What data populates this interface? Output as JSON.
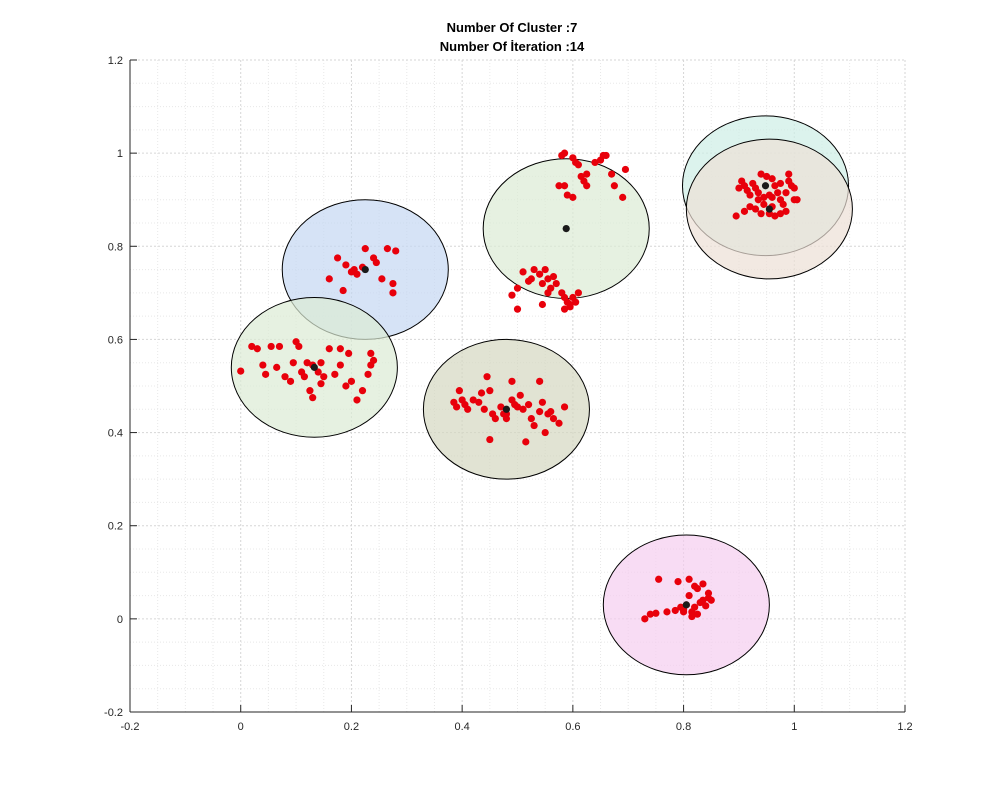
{
  "chart_data": {
    "type": "scatter",
    "title": "Number Of Cluster :7",
    "subtitle": "Number Of İteration :14",
    "xlabel": "",
    "ylabel": "",
    "xlim": [
      -0.2,
      1.2
    ],
    "ylim": [
      -0.2,
      1.2
    ],
    "x_ticks": [
      -0.2,
      0,
      0.2,
      0.4,
      0.6,
      0.8,
      1,
      1.2
    ],
    "y_ticks": [
      -0.2,
      0,
      0.2,
      0.4,
      0.6,
      0.8,
      1,
      1.2
    ],
    "x_tick_labels": [
      "-0.2",
      "0",
      "0.2",
      "0.4",
      "0.6",
      "0.8",
      "1",
      "1.2"
    ],
    "y_tick_labels": [
      "-0.2",
      "0",
      "0.2",
      "0.4",
      "0.6",
      "0.8",
      "1",
      "1.2"
    ],
    "grid": "major and minor, dotted",
    "legend": "none",
    "colors": {
      "point": "#e8000b",
      "centroid": "#1a1a1a",
      "circle_edge": "#000000"
    },
    "clusters": [
      {
        "center": [
          0.225,
          0.75
        ],
        "radius": 0.15,
        "fill": "#c4d7f2",
        "points": [
          [
            0.175,
            0.775
          ],
          [
            0.19,
            0.76
          ],
          [
            0.2,
            0.745
          ],
          [
            0.21,
            0.74
          ],
          [
            0.22,
            0.755
          ],
          [
            0.225,
            0.795
          ],
          [
            0.24,
            0.775
          ],
          [
            0.245,
            0.765
          ],
          [
            0.265,
            0.795
          ],
          [
            0.28,
            0.79
          ],
          [
            0.255,
            0.73
          ],
          [
            0.275,
            0.72
          ],
          [
            0.16,
            0.73
          ],
          [
            0.185,
            0.705
          ],
          [
            0.275,
            0.7
          ],
          [
            0.205,
            0.75
          ]
        ]
      },
      {
        "center": [
          0.133,
          0.54
        ],
        "radius": 0.15,
        "fill": "#dcebd4",
        "points": [
          [
            0.0,
            0.532
          ],
          [
            0.02,
            0.585
          ],
          [
            0.03,
            0.58
          ],
          [
            0.04,
            0.545
          ],
          [
            0.045,
            0.525
          ],
          [
            0.055,
            0.585
          ],
          [
            0.07,
            0.585
          ],
          [
            0.065,
            0.54
          ],
          [
            0.08,
            0.52
          ],
          [
            0.095,
            0.55
          ],
          [
            0.1,
            0.595
          ],
          [
            0.105,
            0.585
          ],
          [
            0.11,
            0.53
          ],
          [
            0.12,
            0.55
          ],
          [
            0.13,
            0.545
          ],
          [
            0.115,
            0.52
          ],
          [
            0.14,
            0.53
          ],
          [
            0.145,
            0.55
          ],
          [
            0.15,
            0.52
          ],
          [
            0.125,
            0.49
          ],
          [
            0.13,
            0.475
          ],
          [
            0.16,
            0.58
          ],
          [
            0.18,
            0.58
          ],
          [
            0.17,
            0.525
          ],
          [
            0.18,
            0.545
          ],
          [
            0.195,
            0.57
          ],
          [
            0.2,
            0.51
          ],
          [
            0.19,
            0.5
          ],
          [
            0.21,
            0.47
          ],
          [
            0.22,
            0.49
          ],
          [
            0.235,
            0.57
          ],
          [
            0.24,
            0.555
          ],
          [
            0.235,
            0.545
          ],
          [
            0.23,
            0.525
          ],
          [
            0.145,
            0.505
          ],
          [
            0.09,
            0.51
          ]
        ]
      },
      {
        "center": [
          0.48,
          0.45
        ],
        "radius": 0.15,
        "fill": "#d4d7c0",
        "points": [
          [
            0.385,
            0.465
          ],
          [
            0.39,
            0.455
          ],
          [
            0.395,
            0.49
          ],
          [
            0.4,
            0.47
          ],
          [
            0.405,
            0.46
          ],
          [
            0.41,
            0.45
          ],
          [
            0.42,
            0.47
          ],
          [
            0.43,
            0.465
          ],
          [
            0.435,
            0.485
          ],
          [
            0.44,
            0.45
          ],
          [
            0.445,
            0.52
          ],
          [
            0.45,
            0.49
          ],
          [
            0.455,
            0.44
          ],
          [
            0.46,
            0.43
          ],
          [
            0.47,
            0.455
          ],
          [
            0.475,
            0.44
          ],
          [
            0.48,
            0.43
          ],
          [
            0.49,
            0.47
          ],
          [
            0.495,
            0.46
          ],
          [
            0.5,
            0.455
          ],
          [
            0.505,
            0.48
          ],
          [
            0.51,
            0.45
          ],
          [
            0.52,
            0.46
          ],
          [
            0.525,
            0.43
          ],
          [
            0.53,
            0.415
          ],
          [
            0.54,
            0.445
          ],
          [
            0.545,
            0.465
          ],
          [
            0.555,
            0.44
          ],
          [
            0.56,
            0.445
          ],
          [
            0.565,
            0.43
          ],
          [
            0.575,
            0.42
          ],
          [
            0.585,
            0.455
          ],
          [
            0.55,
            0.4
          ],
          [
            0.45,
            0.385
          ],
          [
            0.515,
            0.38
          ],
          [
            0.49,
            0.51
          ],
          [
            0.54,
            0.51
          ],
          [
            0.48,
            0.44
          ]
        ]
      },
      {
        "center": [
          0.588,
          0.838
        ],
        "radius": 0.15,
        "fill": "#dcebd4",
        "points": [
          [
            0.58,
            0.995
          ],
          [
            0.585,
            1.0
          ],
          [
            0.6,
            0.99
          ],
          [
            0.605,
            0.98
          ],
          [
            0.61,
            0.975
          ],
          [
            0.615,
            0.95
          ],
          [
            0.62,
            0.94
          ],
          [
            0.625,
            0.955
          ],
          [
            0.64,
            0.98
          ],
          [
            0.65,
            0.985
          ],
          [
            0.655,
            0.995
          ],
          [
            0.66,
            0.995
          ],
          [
            0.67,
            0.955
          ],
          [
            0.675,
            0.93
          ],
          [
            0.69,
            0.905
          ],
          [
            0.695,
            0.965
          ],
          [
            0.585,
            0.93
          ],
          [
            0.59,
            0.91
          ],
          [
            0.6,
            0.905
          ],
          [
            0.575,
            0.93
          ],
          [
            0.625,
            0.93
          ],
          [
            0.49,
            0.695
          ],
          [
            0.5,
            0.71
          ],
          [
            0.51,
            0.745
          ],
          [
            0.52,
            0.725
          ],
          [
            0.525,
            0.73
          ],
          [
            0.53,
            0.75
          ],
          [
            0.54,
            0.74
          ],
          [
            0.545,
            0.72
          ],
          [
            0.55,
            0.75
          ],
          [
            0.555,
            0.73
          ],
          [
            0.56,
            0.71
          ],
          [
            0.565,
            0.735
          ],
          [
            0.57,
            0.72
          ],
          [
            0.58,
            0.7
          ],
          [
            0.585,
            0.69
          ],
          [
            0.59,
            0.68
          ],
          [
            0.595,
            0.67
          ],
          [
            0.6,
            0.69
          ],
          [
            0.605,
            0.68
          ],
          [
            0.61,
            0.7
          ],
          [
            0.5,
            0.665
          ],
          [
            0.545,
            0.675
          ],
          [
            0.555,
            0.7
          ],
          [
            0.585,
            0.665
          ],
          [
            0.595,
            0.675
          ]
        ]
      },
      {
        "center": [
          0.948,
          0.93
        ],
        "radius": 0.15,
        "fill": "#cdeee6",
        "points": []
      },
      {
        "center": [
          0.955,
          0.88
        ],
        "radius": 0.15,
        "fill": "#ede0d5",
        "points": [
          [
            0.895,
            0.865
          ],
          [
            0.9,
            0.925
          ],
          [
            0.905,
            0.94
          ],
          [
            0.91,
            0.93
          ],
          [
            0.915,
            0.92
          ],
          [
            0.92,
            0.91
          ],
          [
            0.925,
            0.935
          ],
          [
            0.93,
            0.925
          ],
          [
            0.935,
            0.9
          ],
          [
            0.94,
            0.955
          ],
          [
            0.945,
            0.905
          ],
          [
            0.95,
            0.95
          ],
          [
            0.955,
            0.91
          ],
          [
            0.96,
            0.945
          ],
          [
            0.965,
            0.93
          ],
          [
            0.97,
            0.915
          ],
          [
            0.975,
            0.9
          ],
          [
            0.98,
            0.89
          ],
          [
            0.985,
            0.915
          ],
          [
            0.99,
            0.94
          ],
          [
            0.995,
            0.93
          ],
          [
            1.0,
            0.925
          ],
          [
            1.005,
            0.9
          ],
          [
            0.96,
            0.885
          ],
          [
            0.955,
            0.87
          ],
          [
            0.965,
            0.865
          ],
          [
            0.975,
            0.87
          ],
          [
            0.985,
            0.875
          ],
          [
            0.94,
            0.87
          ],
          [
            0.93,
            0.88
          ],
          [
            0.92,
            0.885
          ],
          [
            0.91,
            0.875
          ],
          [
            0.945,
            0.89
          ],
          [
            0.935,
            0.915
          ],
          [
            0.96,
            0.905
          ],
          [
            0.99,
            0.955
          ],
          [
            1.0,
            0.9
          ],
          [
            0.975,
            0.935
          ]
        ]
      },
      {
        "center": [
          0.805,
          0.03
        ],
        "radius": 0.15,
        "fill": "#f5cdf0",
        "points": [
          [
            0.73,
            0.0
          ],
          [
            0.74,
            0.01
          ],
          [
            0.75,
            0.012
          ],
          [
            0.755,
            0.085
          ],
          [
            0.77,
            0.015
          ],
          [
            0.785,
            0.018
          ],
          [
            0.795,
            0.025
          ],
          [
            0.8,
            0.02
          ],
          [
            0.805,
            0.03
          ],
          [
            0.81,
            0.05
          ],
          [
            0.815,
            0.015
          ],
          [
            0.82,
            0.025
          ],
          [
            0.825,
            0.065
          ],
          [
            0.83,
            0.035
          ],
          [
            0.835,
            0.04
          ],
          [
            0.84,
            0.028
          ],
          [
            0.845,
            0.045
          ],
          [
            0.85,
            0.04
          ],
          [
            0.81,
            0.085
          ],
          [
            0.79,
            0.08
          ],
          [
            0.815,
            0.005
          ],
          [
            0.825,
            0.01
          ],
          [
            0.835,
            0.075
          ],
          [
            0.845,
            0.055
          ],
          [
            0.82,
            0.07
          ],
          [
            0.8,
            0.015
          ]
        ]
      }
    ]
  }
}
